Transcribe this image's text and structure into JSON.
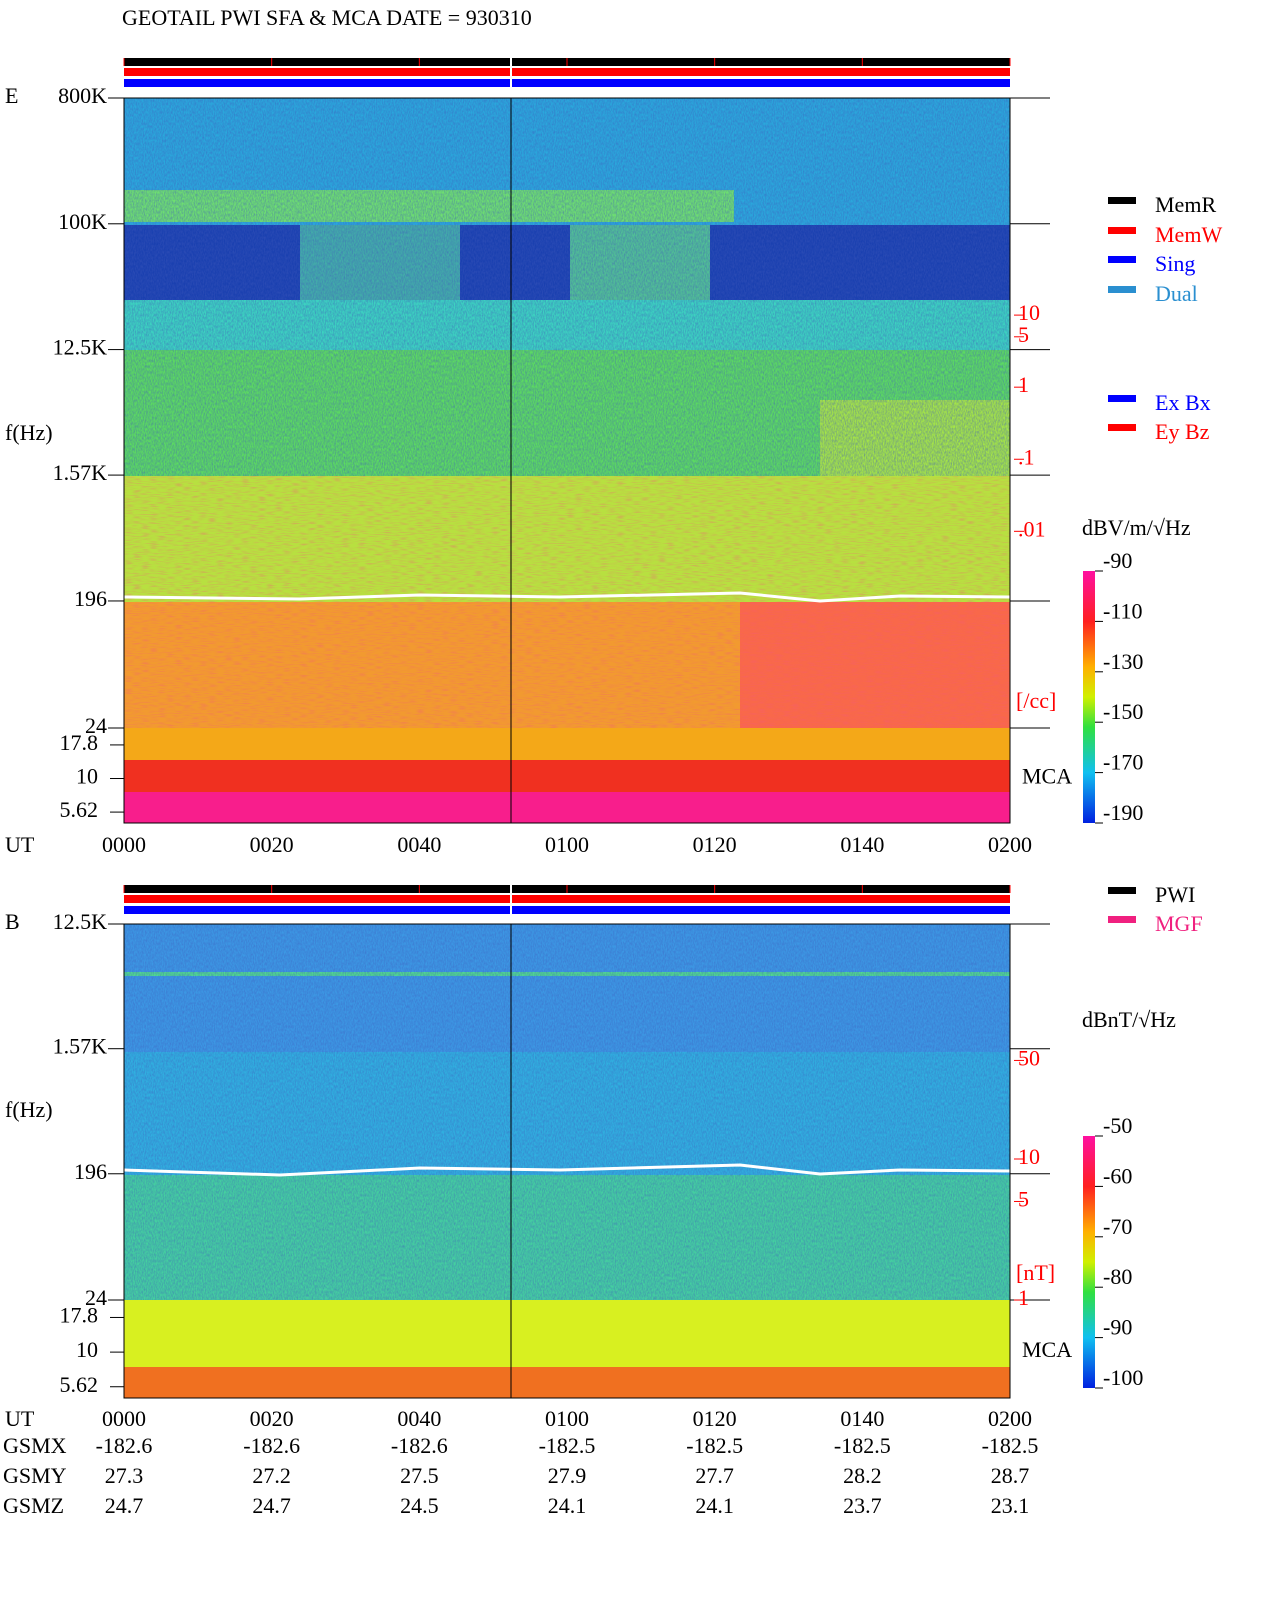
{
  "title": "GEOTAIL  PWI SFA & MCA   DATE = 930310",
  "chart_data": [
    {
      "type": "spectrogram",
      "panel": "E",
      "y_label": "f(Hz)",
      "x_label": "UT",
      "xlim": [
        0,
        120
      ],
      "xticks": [
        {
          "value": 0,
          "label": "0000"
        },
        {
          "value": 20,
          "label": "0020"
        },
        {
          "value": 40,
          "label": "0040"
        },
        {
          "value": 60,
          "label": "0100"
        },
        {
          "value": 80,
          "label": "0120"
        },
        {
          "value": 100,
          "label": "0140"
        },
        {
          "value": 120,
          "label": "0200"
        }
      ],
      "yscale": "log",
      "ylim": [
        24,
        800000
      ],
      "yticks": [
        {
          "value": 800000,
          "label": "800K"
        },
        {
          "value": 100000,
          "label": "100K"
        },
        {
          "value": 12500,
          "label": "12.5K"
        },
        {
          "value": 1570,
          "label": "1.57K"
        },
        196,
        24
      ],
      "mca_label": "MCA",
      "mca_ylim": [
        4.66,
        23.8
      ],
      "mca_ticks": [
        17.8,
        10,
        5.62
      ],
      "density_unit": "[/cc]",
      "density_lim": [
        0.004,
        22.3
      ],
      "density_ticks": [
        10,
        5,
        1,
        {
          "value": 0.1,
          "label": ".1"
        },
        {
          "value": 0.01,
          "label": ".01"
        }
      ],
      "colorbar": {
        "label": "dBV/m/√Hz",
        "lim": [
          -190,
          -90
        ],
        "ticks": [
          -90,
          -110,
          -130,
          -150,
          -170,
          -190
        ]
      },
      "legend": [
        {
          "name": "MemR",
          "color": "#000000"
        },
        {
          "name": "MemW",
          "color": "#ff0000"
        },
        {
          "name": "Sing",
          "color": "#0000ff"
        },
        {
          "name": "Dual",
          "color": "#2a8fd0"
        }
      ],
      "legend2": [
        {
          "name": "Ex Bx",
          "color": "#0000ff"
        },
        {
          "name": "Ey Bz",
          "color": "#ff0000"
        }
      ]
    },
    {
      "type": "spectrogram",
      "panel": "B",
      "y_label": "f(Hz)",
      "x_label": "UT",
      "xlim": [
        0,
        120
      ],
      "xticks": [
        {
          "value": 0,
          "label": "0000"
        },
        {
          "value": 20,
          "label": "0020"
        },
        {
          "value": 40,
          "label": "0040"
        },
        {
          "value": 60,
          "label": "0100"
        },
        {
          "value": 80,
          "label": "0120"
        },
        {
          "value": 100,
          "label": "0140"
        },
        {
          "value": 120,
          "label": "0200"
        }
      ],
      "yscale": "log",
      "ylim": [
        24,
        12500
      ],
      "yticks": [
        {
          "value": 12500,
          "label": "12.5K"
        },
        {
          "value": 1570,
          "label": "1.57K"
        },
        196,
        24
      ],
      "mca_label": "MCA",
      "mca_ylim": [
        4.66,
        23.8
      ],
      "mca_ticks": [
        17.8,
        10,
        5.62
      ],
      "density_unit": "[nT]",
      "density_lim": [
        0.85,
        69.8
      ],
      "density_ticks": [
        50,
        10,
        5,
        1
      ],
      "colorbar": {
        "label": "dBnT/√Hz",
        "lim": [
          -100,
          -50
        ],
        "ticks": [
          -50,
          -60,
          -70,
          -80,
          -90,
          -100
        ]
      },
      "legend": [
        {
          "name": "PWI",
          "color": "#000000"
        },
        {
          "name": "MGF",
          "color": "#f0207f"
        }
      ]
    }
  ],
  "orbit": {
    "rows": [
      {
        "name": "GSMX",
        "values": [
          -182.6,
          -182.6,
          -182.6,
          -182.5,
          -182.5,
          -182.5,
          -182.5
        ]
      },
      {
        "name": "GSMY",
        "values": [
          27.3,
          27.2,
          27.5,
          27.9,
          27.7,
          28.2,
          28.7
        ]
      },
      {
        "name": "GSMZ",
        "values": [
          24.7,
          24.7,
          24.5,
          24.1,
          24.1,
          23.7,
          23.1
        ]
      }
    ]
  }
}
